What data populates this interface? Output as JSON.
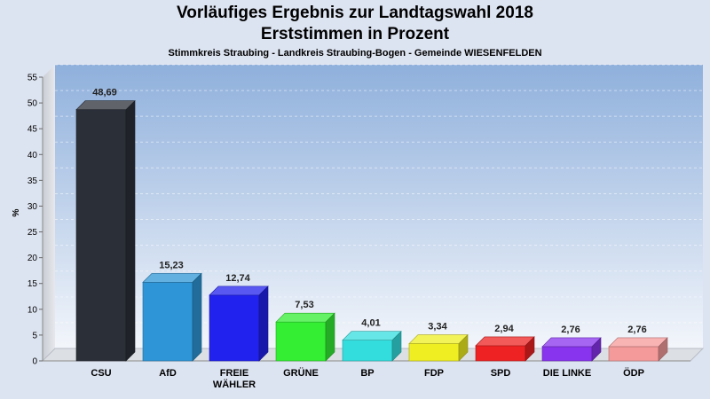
{
  "chart_data": {
    "type": "bar",
    "title": "Vorläufiges Ergebnis zur Landtagswahl 2018",
    "subtitle": "Erststimmen in Prozent",
    "note": "Stimmkreis Straubing - Landkreis Straubing-Bogen - Gemeinde WIESENFELDEN",
    "ylabel": "%",
    "xlabel": "",
    "ylim": [
      0,
      55
    ],
    "yticks": [
      "0",
      "5",
      "10",
      "15",
      "20",
      "25",
      "30",
      "35",
      "40",
      "45",
      "50",
      "55"
    ],
    "grid": true,
    "categories": [
      [
        "CSU"
      ],
      [
        "AfD"
      ],
      [
        "FREIE",
        "WÄHLER"
      ],
      [
        "GRÜNE"
      ],
      [
        "BP"
      ],
      [
        "FDP"
      ],
      [
        "SPD"
      ],
      [
        "DIE LINKE"
      ],
      [
        "ÖDP"
      ]
    ],
    "values": [
      48.69,
      15.23,
      12.74,
      7.53,
      4.01,
      3.34,
      2.94,
      2.76,
      2.76
    ],
    "value_labels": [
      "48,69",
      "15,23",
      "12,74",
      "7,53",
      "4,01",
      "3,34",
      "2,94",
      "2,76",
      "2,76"
    ],
    "colors": [
      "#2b2f38",
      "#2e96d6",
      "#2222ee",
      "#33ee33",
      "#33dddd",
      "#eeee22",
      "#ee2222",
      "#8833ee",
      "#f59a9a"
    ]
  }
}
